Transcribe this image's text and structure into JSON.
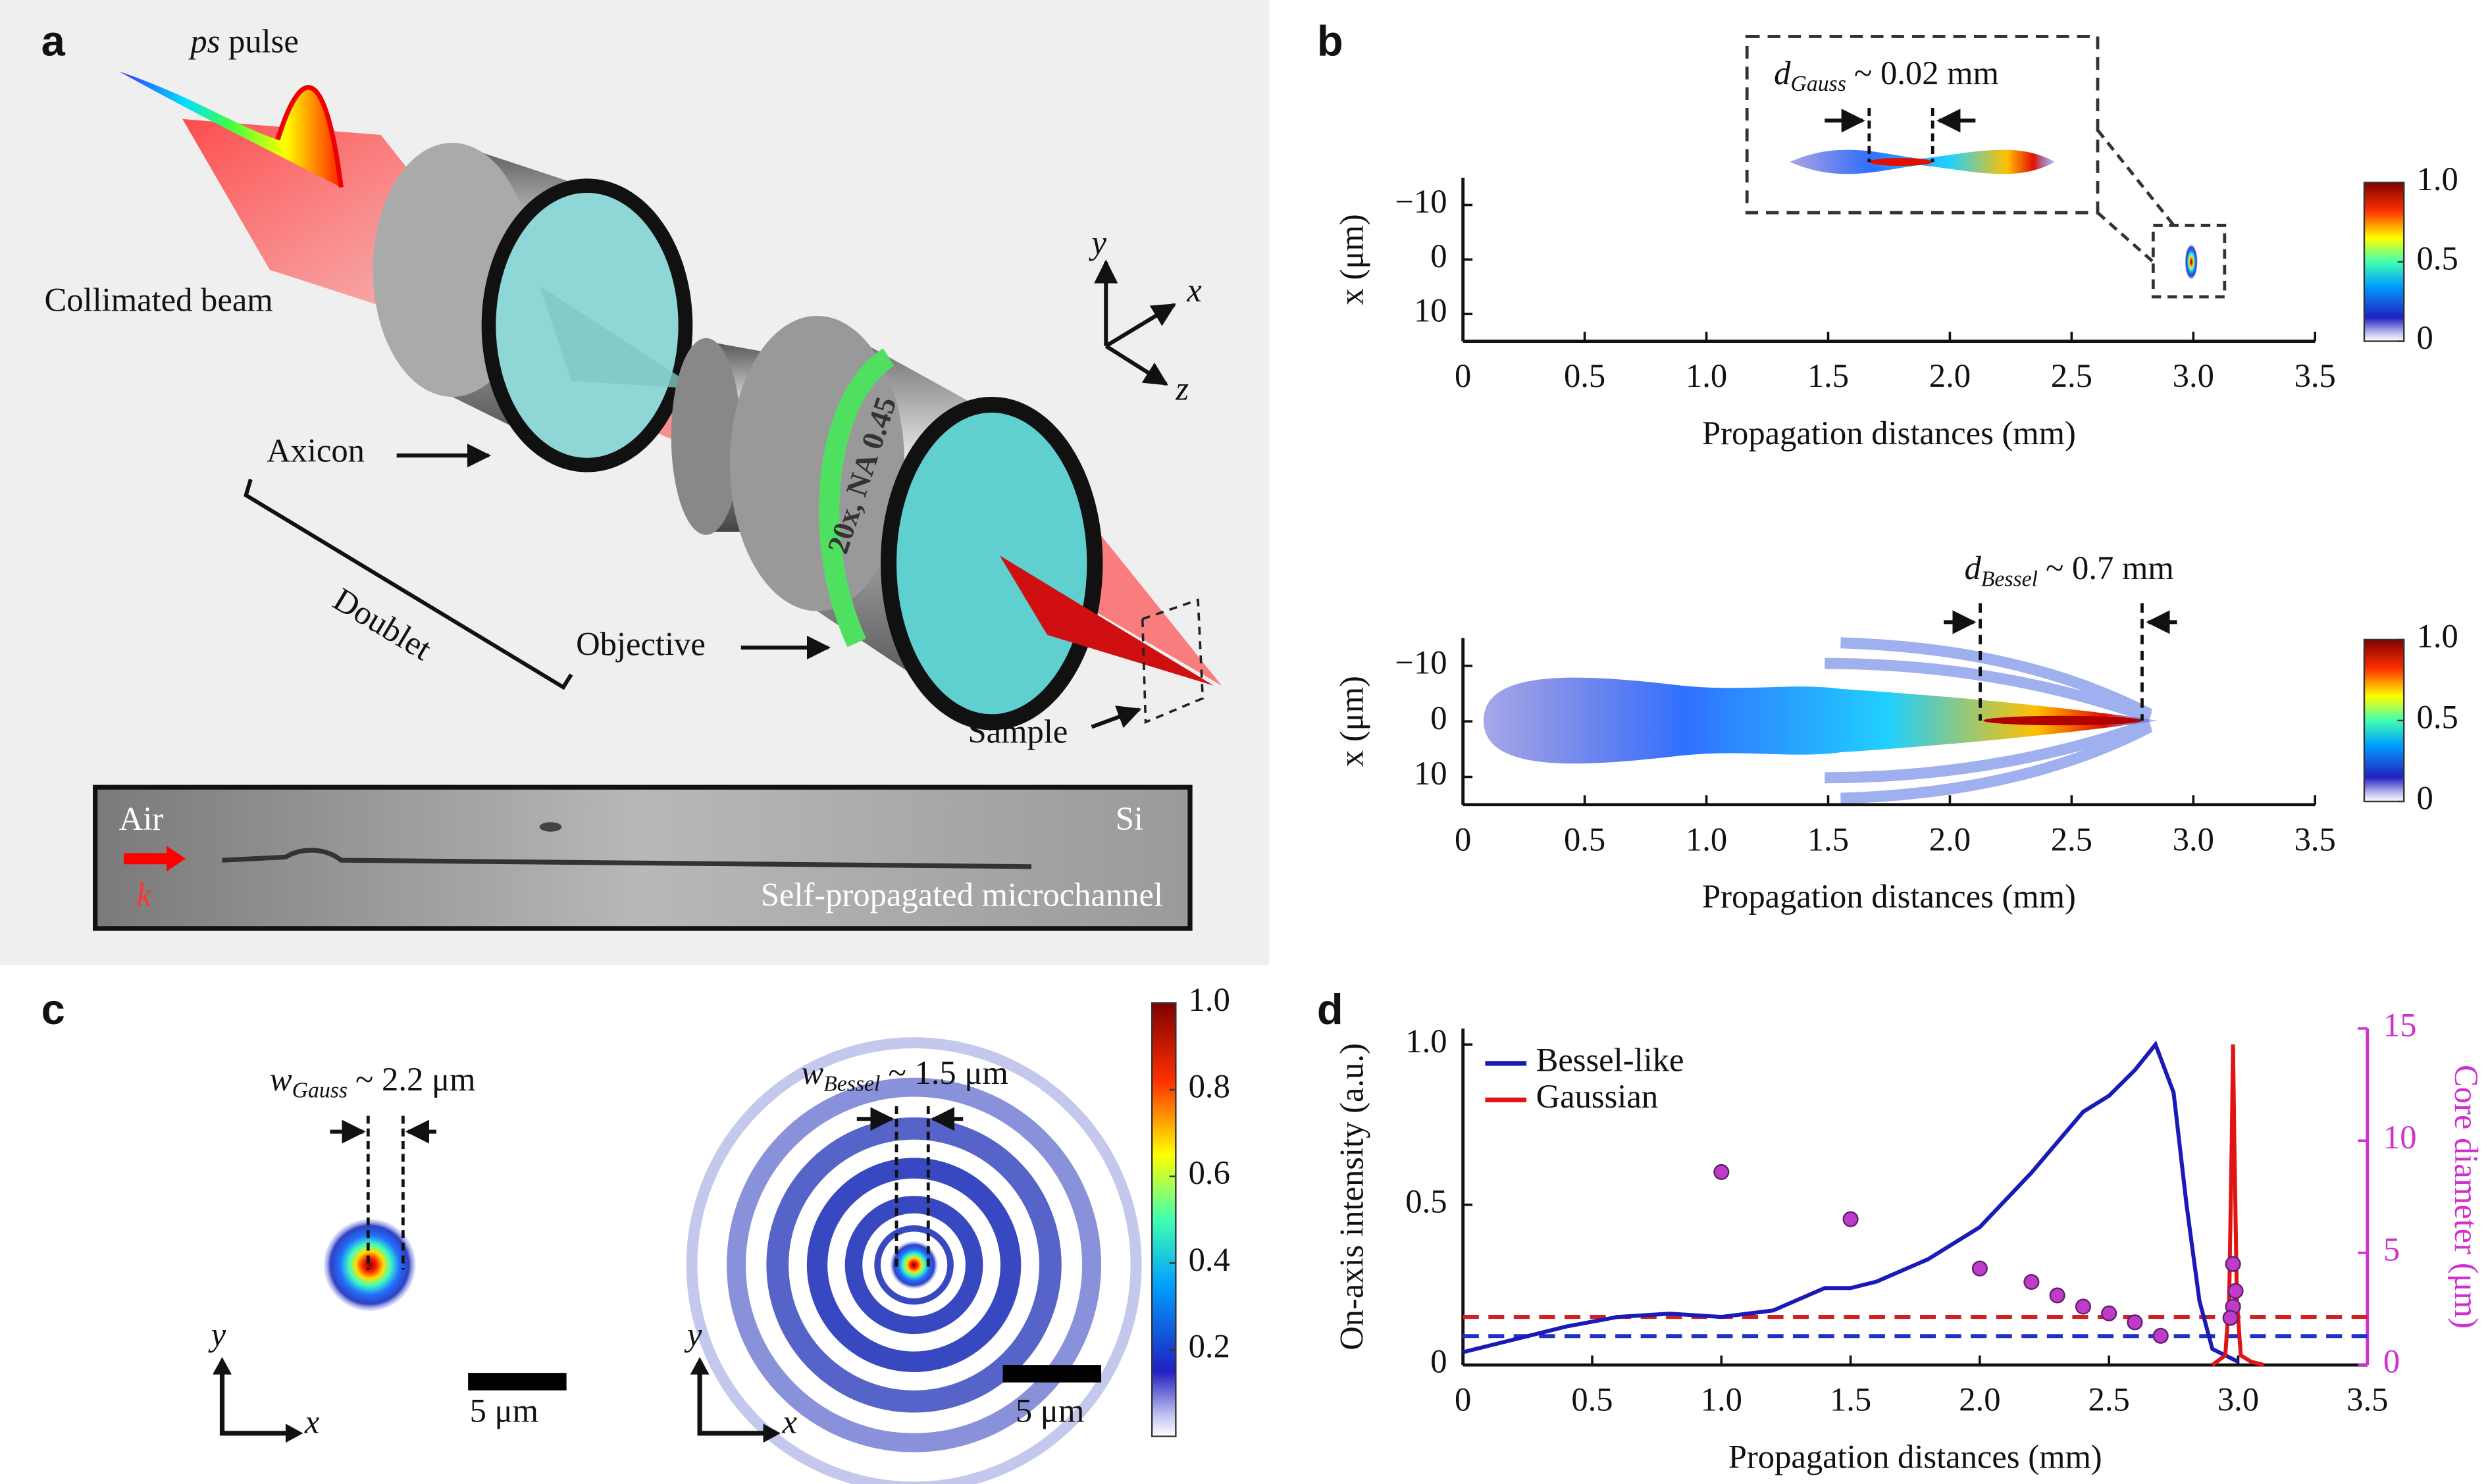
{
  "panels": {
    "a": {
      "label": "a",
      "pulse": {
        "italic": "ps",
        "text": "pulse"
      },
      "beam": "Collimated beam",
      "axicon": "Axicon",
      "doublet": "Doublet",
      "objective": "Objective",
      "lens_spec": "20x, NA 0.45",
      "sample": "Sample",
      "axes": [
        "y",
        "x",
        "z"
      ],
      "inset": {
        "left": "Air",
        "right": "Si",
        "wave": "k",
        "caption": "Self-propagated microchannel"
      }
    },
    "b": {
      "label": "b"
    },
    "c": {
      "label": "c",
      "gauss": {
        "symbol": "w",
        "subscript": "Gauss",
        "text": "~ 2.2 μm"
      },
      "bessel": {
        "symbol": "w",
        "subscript": "Bessel",
        "text": "~ 1.5 μm"
      },
      "scale_bars": [
        "5 μm",
        "5 μm"
      ],
      "axes": [
        "y",
        "x",
        "y",
        "x"
      ],
      "colorbar": {
        "lim": [
          0,
          1
        ],
        "ticks": [
          {
            "value": 1,
            "label": "1.0"
          },
          0.8,
          0.6,
          0.4,
          0.2
        ]
      }
    },
    "d": {
      "label": "d"
    }
  },
  "chart_data": [
    {
      "type": "heatmap",
      "xlabel": "Propagation distances (mm)",
      "ylabel": "x (μm)",
      "xlim": [
        0,
        3.5
      ],
      "xticks": [
        0,
        0.5,
        {
          "value": 1,
          "label": "1.0"
        },
        1.5,
        {
          "value": 2,
          "label": "2.0"
        },
        2.5,
        {
          "value": 3,
          "label": "3.0"
        },
        3.5
      ],
      "ylim": [
        -15,
        15
      ],
      "yticks": [
        {
          "value": -10,
          "label": "−10"
        },
        0,
        10
      ],
      "annotation": {
        "symbol": "d",
        "subscript": "Gauss",
        "text": "~ 0.02 mm"
      },
      "colorbar": {
        "lim": [
          0,
          1
        ],
        "ticks": [
          0,
          0.5,
          {
            "value": 1,
            "label": "1.0"
          }
        ]
      }
    },
    {
      "type": "heatmap",
      "xlabel": "Propagation distances (mm)",
      "ylabel": "x (μm)",
      "xlim": [
        0,
        3.5
      ],
      "xticks": [
        0,
        0.5,
        {
          "value": 1,
          "label": "1.0"
        },
        1.5,
        {
          "value": 2,
          "label": "2.0"
        },
        2.5,
        {
          "value": 3,
          "label": "3.0"
        },
        3.5
      ],
      "ylim": [
        -15,
        15
      ],
      "yticks": [
        {
          "value": -10,
          "label": "−10"
        },
        0,
        10
      ],
      "annotation": {
        "symbol": "d",
        "subscript": "Bessel",
        "text": "~ 0.7 mm"
      },
      "colorbar": {
        "lim": [
          0,
          1
        ],
        "ticks": [
          0,
          0.5,
          {
            "value": 1,
            "label": "1.0"
          }
        ]
      }
    },
    {
      "type": "line",
      "xlabel": "Propagation distances (mm)",
      "ylabel": "On-axis intensity (a.u.)",
      "y2label": "Core diameter (μm)",
      "xlim": [
        0,
        3.5
      ],
      "xticks": [
        0,
        0.5,
        {
          "value": 1,
          "label": "1.0"
        },
        1.5,
        {
          "value": 2,
          "label": "2.0"
        },
        2.5,
        {
          "value": 3,
          "label": "3.0"
        },
        3.5
      ],
      "ylim": [
        0,
        1.05
      ],
      "yticks": [
        0,
        0.5,
        {
          "value": 1,
          "label": "1.0"
        }
      ],
      "y2lim": [
        0,
        15
      ],
      "y2ticks": [
        0,
        5,
        10,
        15
      ],
      "y2color": "#d030d0",
      "legend": "upper left",
      "series": [
        {
          "name": "Bessel-like",
          "color": "#1a1ab8",
          "x": [
            0,
            0.2,
            0.4,
            0.6,
            0.8,
            1.0,
            1.2,
            1.4,
            1.5,
            1.6,
            1.8,
            2.0,
            2.2,
            2.4,
            2.5,
            2.6,
            2.68,
            2.75,
            2.8,
            2.85,
            2.9,
            3.0
          ],
          "values": [
            0.04,
            0.08,
            0.12,
            0.15,
            0.16,
            0.15,
            0.17,
            0.24,
            0.24,
            0.26,
            0.33,
            0.43,
            0.6,
            0.79,
            0.84,
            0.92,
            1.0,
            0.85,
            0.5,
            0.2,
            0.05,
            0.01
          ]
        },
        {
          "name": "Gaussian",
          "color": "#e01414",
          "x": [
            2.9,
            2.95,
            2.965,
            2.975,
            2.98,
            2.985,
            2.995,
            3.01,
            3.05,
            3.1
          ],
          "values": [
            0,
            0.03,
            0.2,
            0.7,
            1.0,
            0.7,
            0.2,
            0.03,
            0.01,
            0
          ]
        },
        {
          "type": "scatter",
          "axis": "y2",
          "color": "#c03cc8",
          "x": [
            1.0,
            1.5,
            2.0,
            2.2,
            2.3,
            2.4,
            2.5,
            2.6,
            2.7,
            2.98,
            2.99,
            2.98,
            2.97
          ],
          "values": [
            8.6,
            6.5,
            4.3,
            3.7,
            3.1,
            2.6,
            2.3,
            1.9,
            1.3,
            4.5,
            3.3,
            2.6,
            2.1
          ]
        }
      ],
      "hlines": [
        {
          "value": 0.15,
          "color": "#d02020"
        },
        {
          "value": 0.09,
          "color": "#2030c0"
        }
      ]
    }
  ]
}
